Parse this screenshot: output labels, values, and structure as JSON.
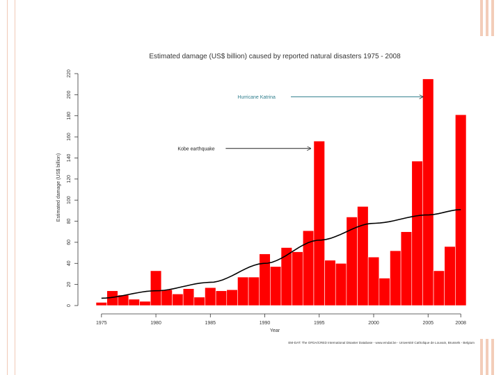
{
  "chart_data": {
    "type": "bar",
    "title": "Estimated damage (US$ billion) caused by reported natural disasters 1975 - 2008",
    "xlabel": "Year",
    "ylabel": "Estimated damage (US$ billion)",
    "x_ticks": [
      "1975",
      "1980",
      "1985",
      "1990",
      "1995",
      "2000",
      "2005",
      "2008"
    ],
    "y_ticks": [
      "0",
      "20",
      "40",
      "60",
      "80",
      "100",
      "120",
      "140",
      "160",
      "180",
      "200",
      "220"
    ],
    "ylim": [
      0,
      220
    ],
    "xlim": [
      1974.5,
      2008.5
    ],
    "grid": false,
    "bar_color": "#ff0000",
    "trend_color": "#000000",
    "categories": [
      1975,
      1976,
      1977,
      1978,
      1979,
      1980,
      1981,
      1982,
      1983,
      1984,
      1985,
      1986,
      1987,
      1988,
      1989,
      1990,
      1991,
      1992,
      1993,
      1994,
      1995,
      1996,
      1997,
      1998,
      1999,
      2000,
      2001,
      2002,
      2003,
      2004,
      2005,
      2006,
      2007,
      2008
    ],
    "values": [
      3,
      14,
      10,
      6,
      4,
      33,
      15,
      11,
      16,
      8,
      17,
      14,
      15,
      27,
      27,
      49,
      37,
      55,
      51,
      71,
      156,
      43,
      40,
      84,
      94,
      46,
      26,
      52,
      70,
      137,
      215,
      33,
      56,
      181
    ],
    "trend": {
      "x": [
        1975,
        1980,
        1985,
        1990,
        1995,
        2000,
        2005,
        2008
      ],
      "y": [
        7,
        14,
        22,
        40,
        62,
        78,
        86,
        91
      ]
    },
    "annotations": [
      {
        "text": "Hurricane Katrina",
        "x": 1987.5,
        "y": 198,
        "arrow_to_x": 2004.5,
        "arrow_to_y": 198,
        "color": "#2e7d8c"
      },
      {
        "text": "Kobe earthquake",
        "x": 1982,
        "y": 149,
        "arrow_to_x": 1994.2,
        "arrow_to_y": 149,
        "color": "#222222"
      }
    ],
    "source": "EM-DAT: The OFDA/CRED International Disaster Database - www.emdat.be - Université Catholique de Louvain, Brussels - Belgium"
  }
}
